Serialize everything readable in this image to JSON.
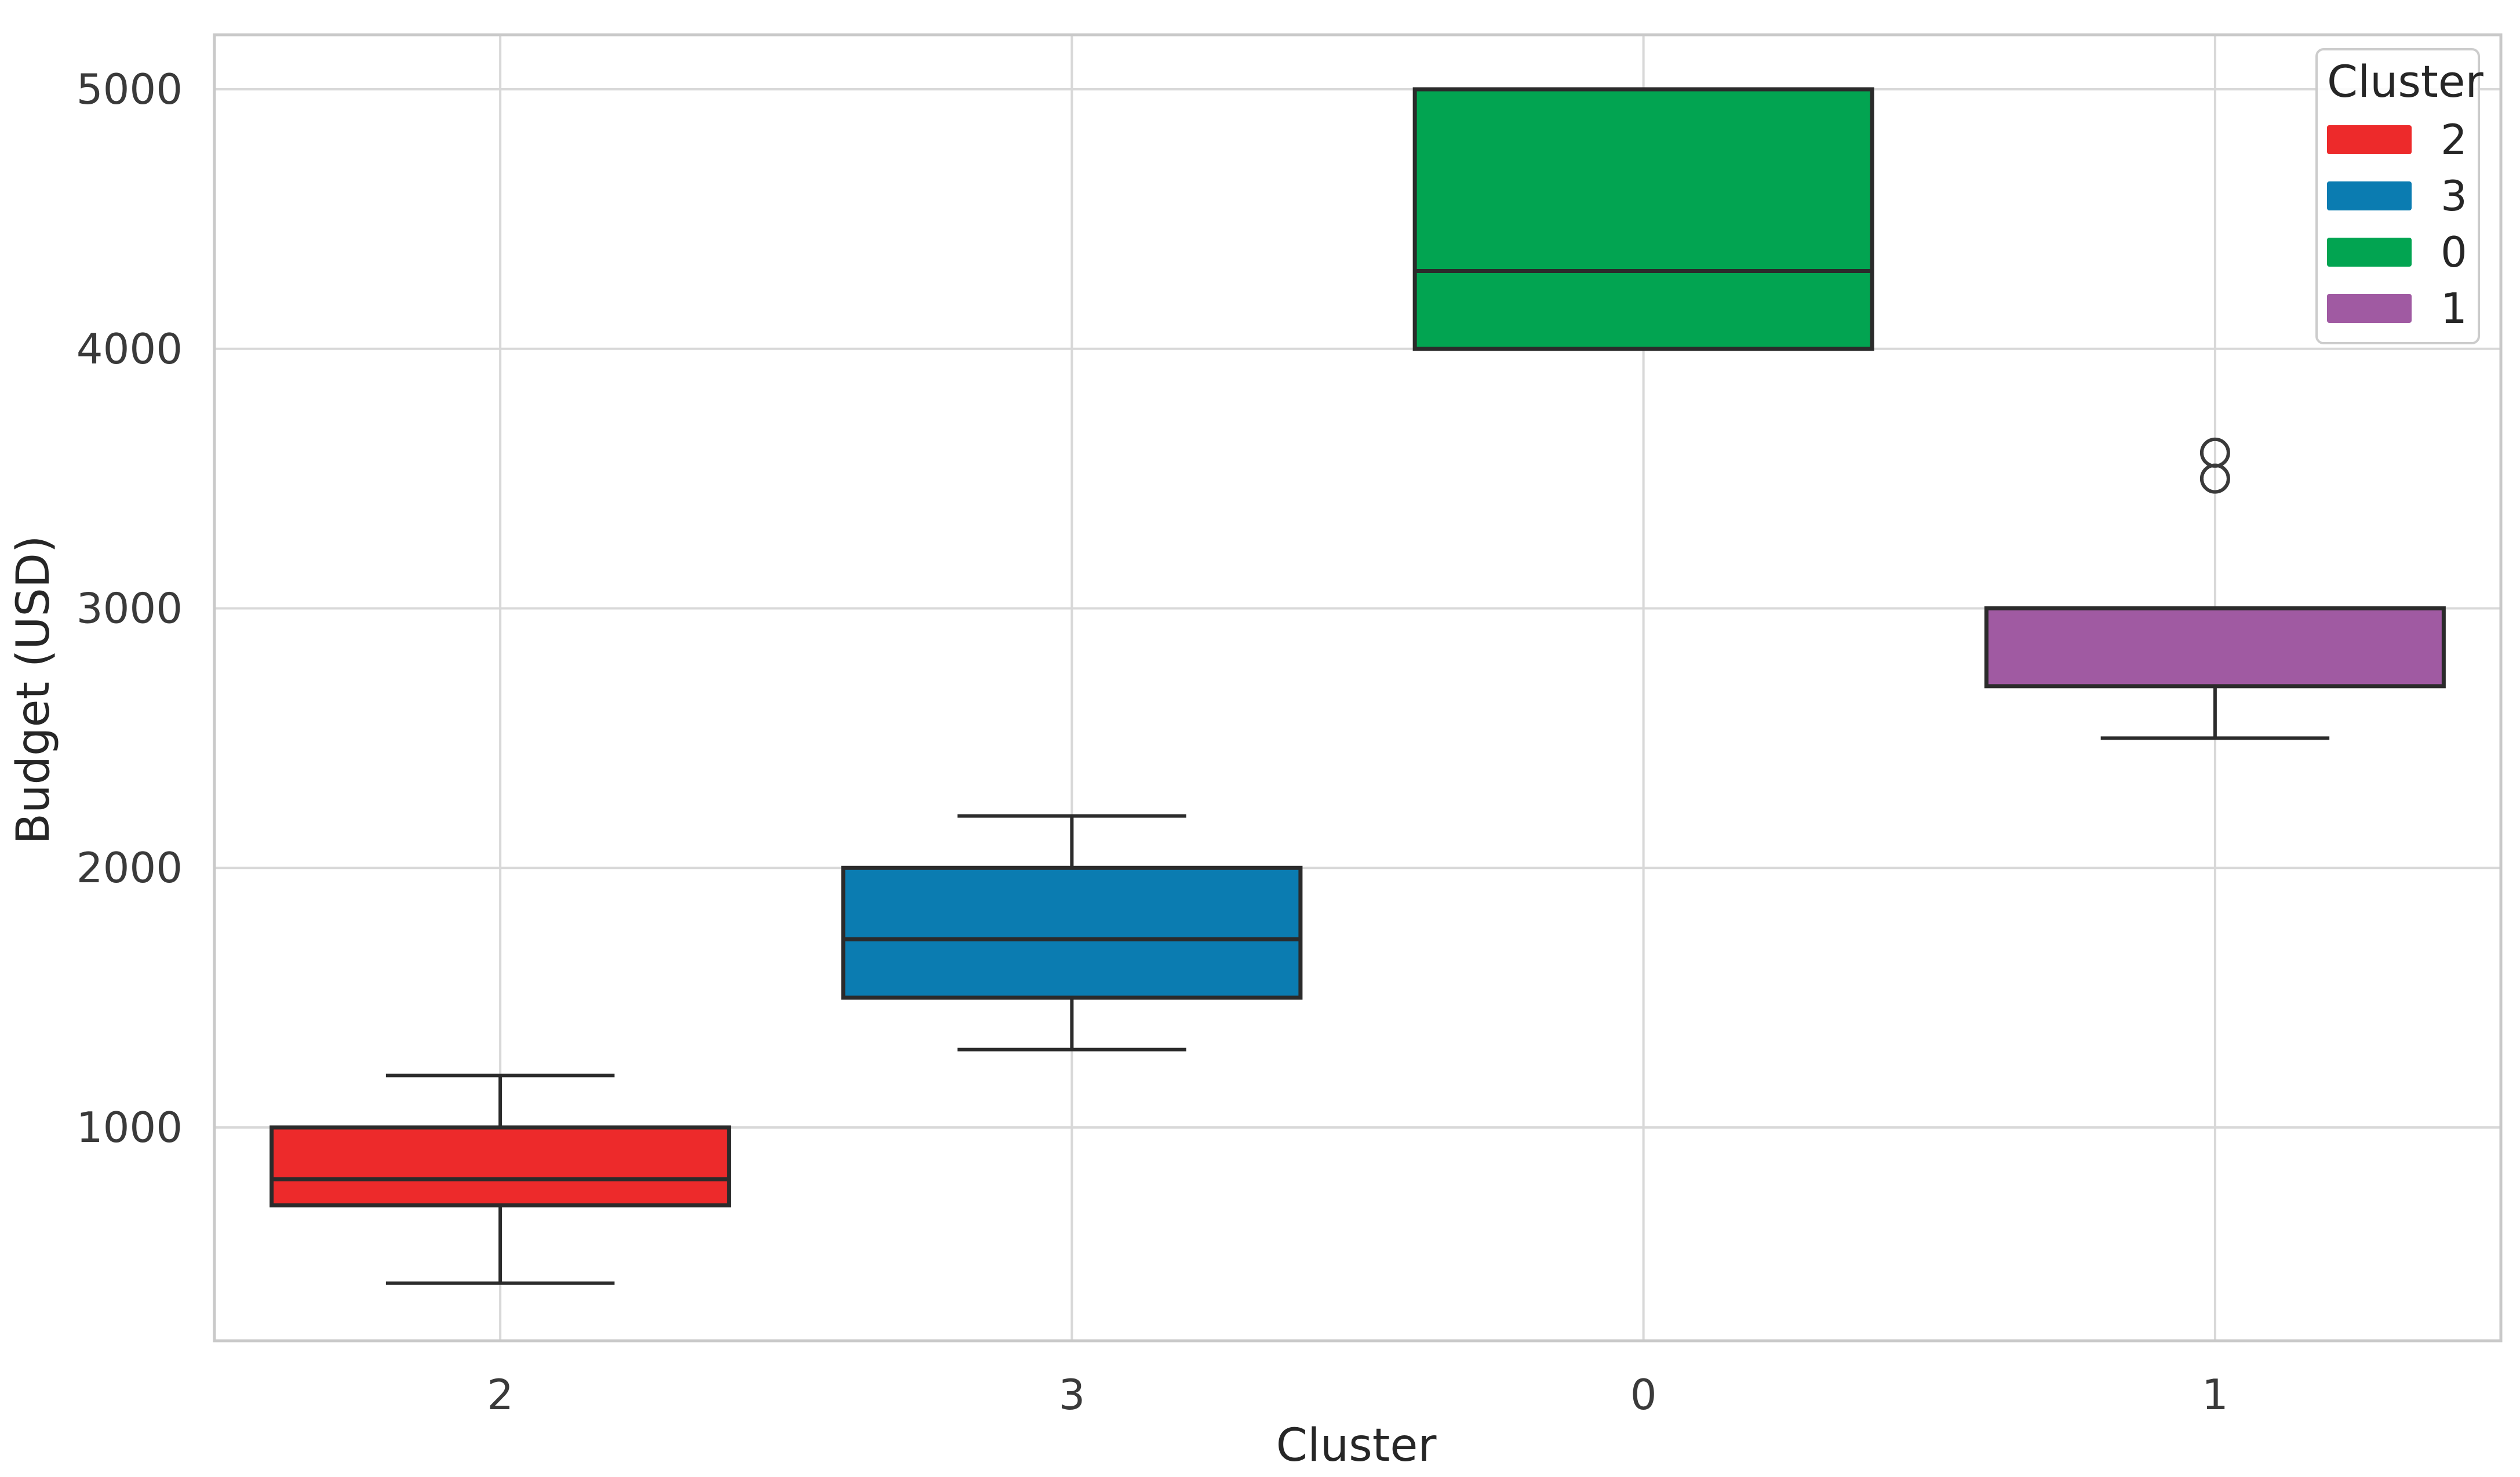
{
  "figure": {
    "background": "#ffffff"
  },
  "legend": {
    "title": "Cluster",
    "items": [
      {
        "label": "2",
        "color": "#ed2a2b"
      },
      {
        "label": "3",
        "color": "#0b7cb1"
      },
      {
        "label": "0",
        "color": "#02a451"
      },
      {
        "label": "1",
        "color": "#a05aa2"
      }
    ]
  },
  "chart_data": {
    "type": "box",
    "title": "",
    "xlabel": "Cluster",
    "ylabel": "Budget (USD)",
    "categories": [
      "2",
      "3",
      "0",
      "1"
    ],
    "y_ticks": [
      1000,
      2000,
      3000,
      4000,
      5000
    ],
    "ylim": [
      178,
      5210
    ],
    "grid": true,
    "legend_position": "upper right",
    "series": [
      {
        "cluster": "2",
        "color": "#ed2a2b",
        "whisker_low": 400,
        "q1": 700,
        "median": 800,
        "q3": 1000,
        "whisker_high": 1200,
        "outliers": []
      },
      {
        "cluster": "3",
        "color": "#0b7cb1",
        "whisker_low": 1300,
        "q1": 1500,
        "median": 1725,
        "q3": 2000,
        "whisker_high": 2200,
        "outliers": []
      },
      {
        "cluster": "0",
        "color": "#02a451",
        "whisker_low": 4000,
        "q1": 4000,
        "median": 4300,
        "q3": 5000,
        "whisker_high": 5000,
        "outliers": []
      },
      {
        "cluster": "1",
        "color": "#a05aa2",
        "whisker_low": 2500,
        "q1": 2700,
        "median": 3000,
        "q3": 3000,
        "whisker_high": 3000,
        "outliers": [
          3500,
          3600
        ]
      }
    ]
  },
  "style_colors": {
    "grid": "#d8d8d8",
    "spine": "#c9c9c9",
    "box_edge": "#2b2b2b",
    "outlier_edge": "#3a3a3a",
    "tick_text": "#3a3a3a"
  }
}
